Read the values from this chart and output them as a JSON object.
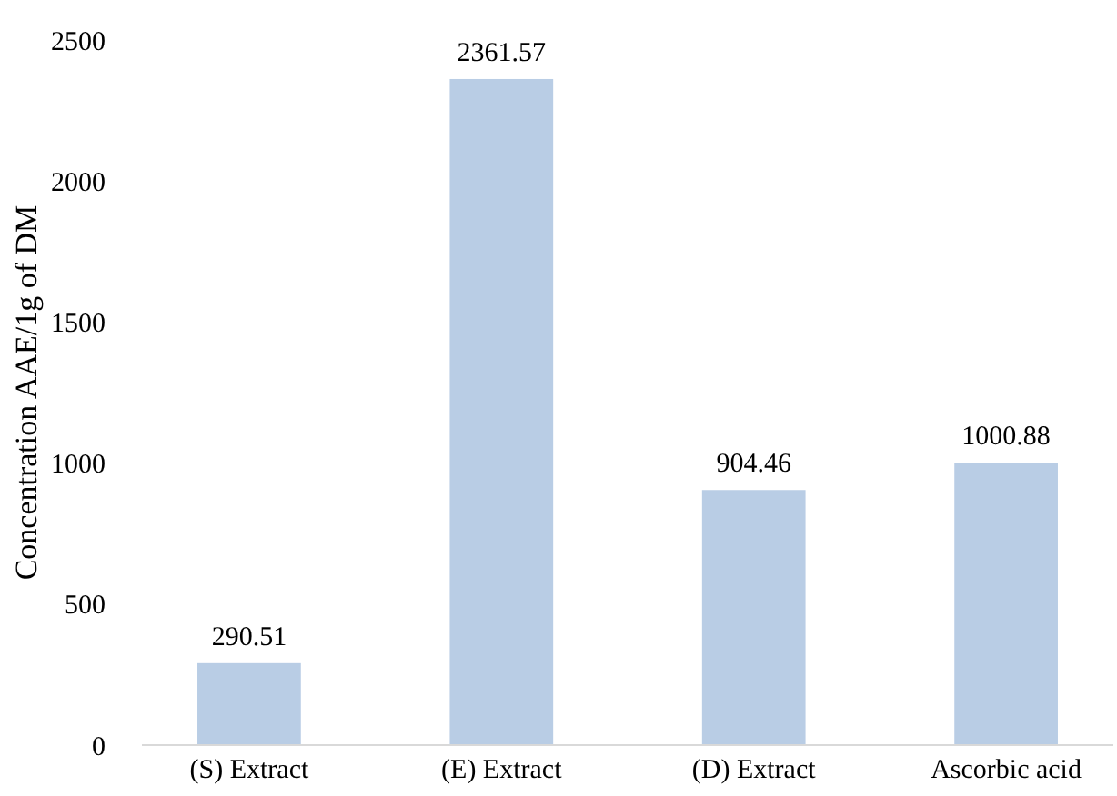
{
  "chart_data": {
    "type": "bar",
    "ylabel": "Concentration AAE/1g of DM",
    "categories": [
      "(S) Extract",
      "(E) Extract",
      "(D) Extract",
      "Ascorbic acid"
    ],
    "values": [
      290.51,
      2361.57,
      904.46,
      1000.88
    ],
    "color": "#b9cde5",
    "ylim": [
      0,
      2500
    ],
    "yticks": [
      0,
      500,
      1000,
      1500,
      2000,
      2500
    ],
    "grid": false,
    "data_labels": true
  }
}
